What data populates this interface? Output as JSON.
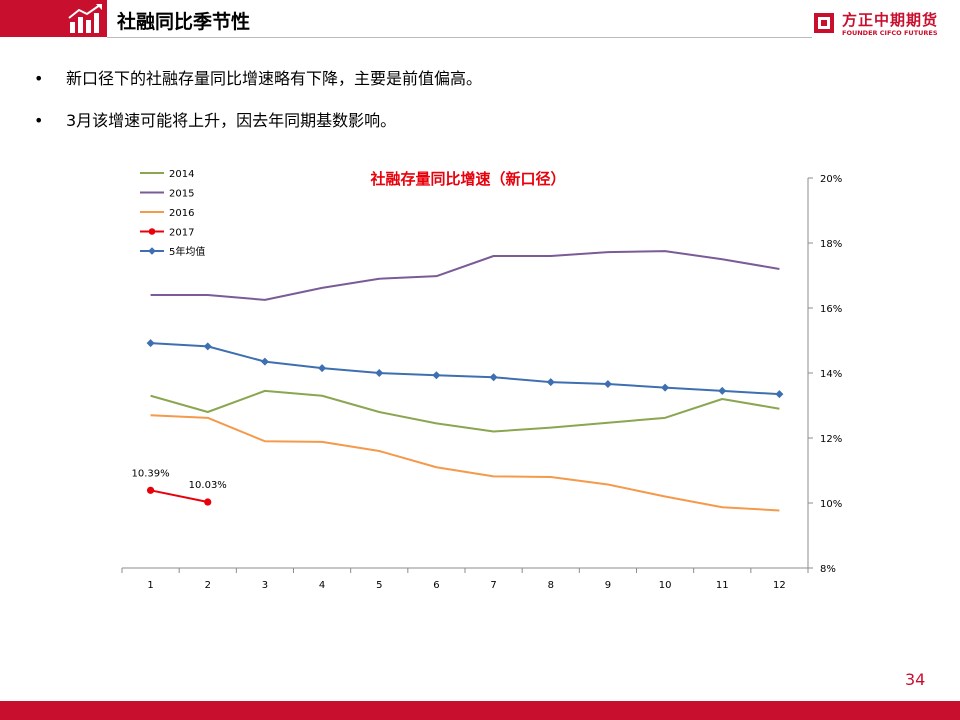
{
  "slide": {
    "title": "社融同比季节性",
    "page_number": "34",
    "logo": {
      "cn": "方正中期期货",
      "en": "FOUNDER CIFCO FUTURES"
    },
    "bullets": [
      "新口径下的社融存量同比增速略有下降，主要是前值偏高。",
      "3月该增速可能将上升，因去年同期基数影响。"
    ]
  },
  "colors": {
    "brand": "#c8102e"
  },
  "icons": {
    "title": "bar-chart-growth-icon",
    "logo": "founder-logo-icon"
  },
  "chart_data": {
    "type": "line",
    "title": "社融存量同比增速（新口径）",
    "title_color": "#e8000b",
    "categories": [
      "1",
      "2",
      "3",
      "4",
      "5",
      "6",
      "7",
      "8",
      "9",
      "10",
      "11",
      "12"
    ],
    "y_axis": {
      "position": "right",
      "min": 8,
      "max": 20,
      "step": 2,
      "format": "percent",
      "ticks": [
        "8%",
        "10%",
        "12%",
        "14%",
        "16%",
        "18%",
        "20%"
      ]
    },
    "grid": false,
    "legend_position": "top-left",
    "series": [
      {
        "name": "2014",
        "color": "#8aa650",
        "marker": "none",
        "values": [
          13.3,
          12.8,
          13.45,
          13.3,
          12.8,
          12.45,
          12.2,
          12.32,
          12.47,
          12.62,
          13.2,
          12.9
        ]
      },
      {
        "name": "2015",
        "color": "#7a5b97",
        "marker": "none",
        "values": [
          16.4,
          16.4,
          16.25,
          16.62,
          16.9,
          16.98,
          17.6,
          17.6,
          17.72,
          17.75,
          17.5,
          17.2
        ]
      },
      {
        "name": "2016",
        "color": "#f5994a",
        "marker": "none",
        "values": [
          12.7,
          12.62,
          11.9,
          11.88,
          11.6,
          11.1,
          10.82,
          10.8,
          10.57,
          10.2,
          9.87,
          9.77
        ]
      },
      {
        "name": "2017",
        "color": "#e8000b",
        "marker": "circle",
        "values": [
          10.39,
          10.03,
          null,
          null,
          null,
          null,
          null,
          null,
          null,
          null,
          null,
          null
        ],
        "data_labels": [
          "10.39%",
          "10.03%"
        ]
      },
      {
        "name": "5年均值",
        "color": "#3e6fb0",
        "marker": "diamond",
        "values": [
          14.92,
          14.82,
          14.35,
          14.15,
          14.0,
          13.93,
          13.87,
          13.72,
          13.66,
          13.55,
          13.45,
          13.35
        ]
      }
    ]
  }
}
